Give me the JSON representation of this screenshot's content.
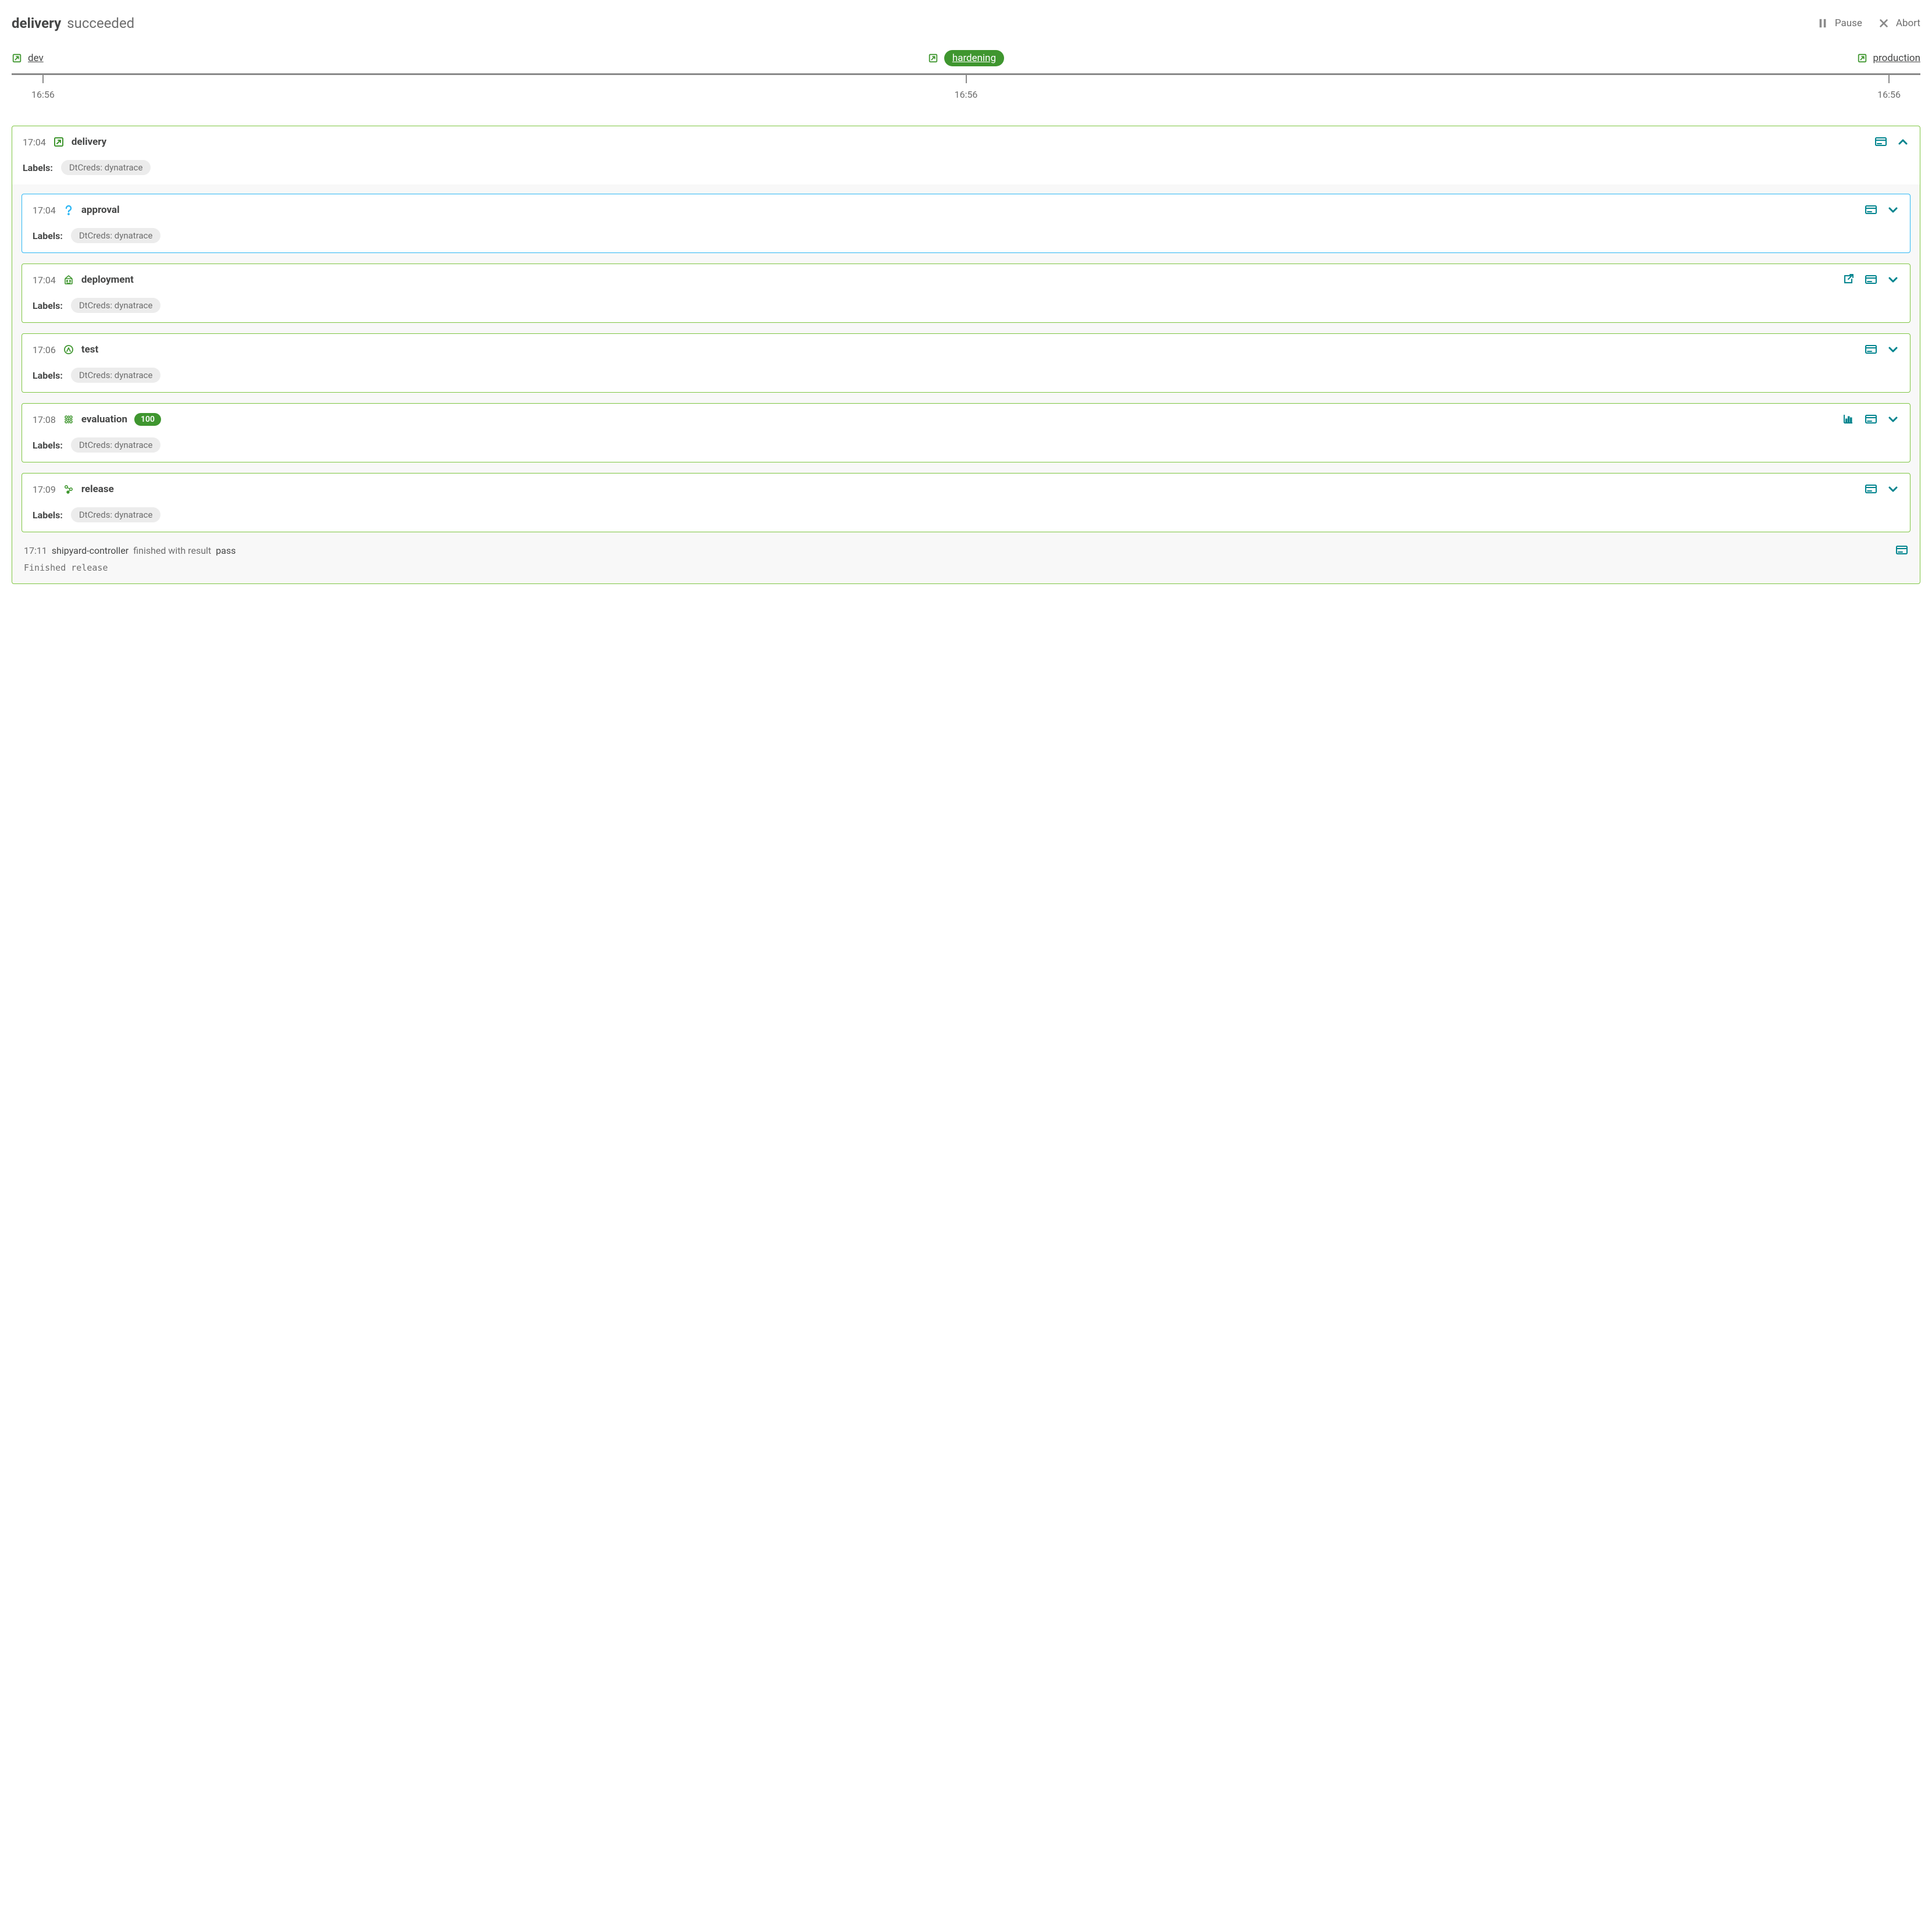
{
  "colors": {
    "green": "#3f962f",
    "green_border": "#7dc540",
    "teal": "#00848e",
    "blue": "#2ab6f4",
    "grey_text": "#6d6d6d",
    "dark_text": "#454646",
    "pill_bg": "#ececec",
    "inner_bg": "#f8f8f8",
    "timeline": "#898989",
    "white": "#ffffff"
  },
  "header": {
    "title": "delivery",
    "status": "succeeded",
    "pause": "Pause",
    "abort": "Abort"
  },
  "stages": {
    "items": [
      {
        "label": "dev",
        "active": false,
        "time": "16:56"
      },
      {
        "label": "hardening",
        "active": true,
        "time": "16:56"
      },
      {
        "label": "production",
        "active": false,
        "time": "16:56"
      }
    ]
  },
  "main": {
    "time": "17:04",
    "title": "delivery",
    "labels_label": "Labels:",
    "labels": [
      "DtCreds: dynatrace"
    ]
  },
  "steps": [
    {
      "time": "17:04",
      "title": "approval",
      "icon": "question",
      "border": "blue",
      "expanded": false,
      "actions": [
        "terminal",
        "chevron"
      ],
      "labels_label": "Labels:",
      "labels": [
        "DtCreds: dynatrace"
      ]
    },
    {
      "time": "17:04",
      "title": "deployment",
      "icon": "deploy",
      "border": "green",
      "expanded": false,
      "actions": [
        "external",
        "terminal",
        "chevron"
      ],
      "labels_label": "Labels:",
      "labels": [
        "DtCreds: dynatrace"
      ]
    },
    {
      "time": "17:06",
      "title": "test",
      "icon": "test",
      "border": "green",
      "expanded": false,
      "actions": [
        "terminal",
        "chevron"
      ],
      "labels_label": "Labels:",
      "labels": [
        "DtCreds: dynatrace"
      ]
    },
    {
      "time": "17:08",
      "title": "evaluation",
      "icon": "eval",
      "border": "green",
      "expanded": false,
      "score": "100",
      "actions": [
        "barchart",
        "terminal",
        "chevron"
      ],
      "labels_label": "Labels:",
      "labels": [
        "DtCreds: dynatrace"
      ]
    },
    {
      "time": "17:09",
      "title": "release",
      "icon": "release",
      "border": "green",
      "expanded": false,
      "actions": [
        "terminal",
        "chevron"
      ],
      "labels_label": "Labels:",
      "labels": [
        "DtCreds: dynatrace"
      ]
    }
  ],
  "footer": {
    "time": "17:11",
    "source": "shipyard-controller",
    "text1": "finished with result",
    "result": "pass",
    "message": "Finished release"
  }
}
